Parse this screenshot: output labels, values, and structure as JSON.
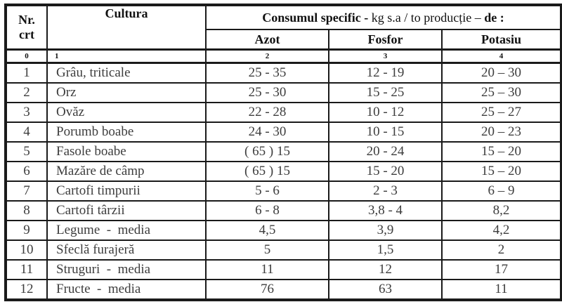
{
  "page": {
    "background": "#ffffff",
    "border_color": "#1a1a1a",
    "data_text_color": "#3d3d3d",
    "header_text_color": "#111111"
  },
  "table": {
    "header": {
      "nr_line1": "Nr.",
      "nr_line2": "crt",
      "cultura": "Cultura",
      "consum_bold1": "Consumul specific - ",
      "consum_regular": "kg s.a / to producție – ",
      "consum_bold2": "de :",
      "subheaders": [
        "Azot",
        "Fosfor",
        "Potasiu"
      ]
    },
    "index_row": [
      "0",
      "1",
      "2",
      "3",
      "4"
    ],
    "rows": [
      {
        "nr": "1",
        "cultura": "Grâu, triticale",
        "azot": "25 - 35",
        "fosfor": "12 - 19",
        "potasiu": "20 – 30"
      },
      {
        "nr": "2",
        "cultura": "Orz",
        "azot": "25 - 30",
        "fosfor": "15 - 25",
        "potasiu": "25 – 30"
      },
      {
        "nr": "3",
        "cultura": "Ovăz",
        "azot": "22 - 28",
        "fosfor": "10 - 12",
        "potasiu": "25 – 27"
      },
      {
        "nr": "4",
        "cultura": "Porumb boabe",
        "azot": "24 - 30",
        "fosfor": "10 - 15",
        "potasiu": "20 – 23"
      },
      {
        "nr": "5",
        "cultura": "Fasole boabe",
        "azot": "( 65 ) 15",
        "fosfor": "20 - 24",
        "potasiu": "15 – 20"
      },
      {
        "nr": "6",
        "cultura": "Mazăre de câmp",
        "azot": "( 65 ) 15",
        "fosfor": "15 - 20",
        "potasiu": "15 – 20"
      },
      {
        "nr": "7",
        "cultura": "Cartofi timpurii",
        "azot": "5 - 6",
        "fosfor": "2 - 3",
        "potasiu": "6 – 9"
      },
      {
        "nr": "8",
        "cultura": "Cartofi târzii",
        "azot": "6 - 8",
        "fosfor": "3,8 - 4",
        "potasiu": "8,2"
      },
      {
        "nr": "9",
        "cultura": "Legume  -  media",
        "azot": "4,5",
        "fosfor": "3,9",
        "potasiu": "4,2"
      },
      {
        "nr": "10",
        "cultura": "Sfeclă furajeră",
        "azot": "5",
        "fosfor": "1,5",
        "potasiu": "2"
      },
      {
        "nr": "11",
        "cultura": "Struguri  -  media",
        "azot": "11",
        "fosfor": "12",
        "potasiu": "17"
      },
      {
        "nr": "12",
        "cultura": "Fructe  -  media",
        "azot": "76",
        "fosfor": "63",
        "potasiu": "11"
      }
    ]
  }
}
